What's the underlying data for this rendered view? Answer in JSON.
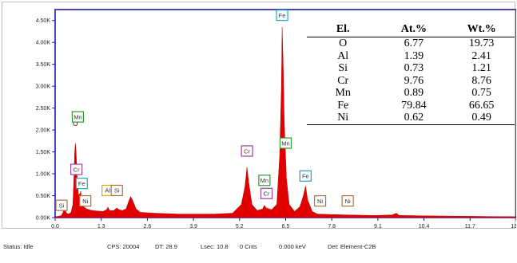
{
  "chart_data": {
    "type": "line",
    "title": "",
    "xlabel": "",
    "ylabel": "",
    "xlim": [
      0.0,
      13.0
    ],
    "ylim": [
      0,
      4.75
    ],
    "x_ticks": [
      "0.0",
      "1.3",
      "2.6",
      "3.9",
      "5.2",
      "6.5",
      "7.8",
      "9.1",
      "10.4",
      "11.7",
      "13.0"
    ],
    "y_ticks": [
      "0.00K",
      "0.50K",
      "1.00K",
      "1.50K",
      "2.00K",
      "2.50K",
      "3.00K",
      "3.50K",
      "4.00K",
      "4.50K"
    ],
    "y_tick_values": [
      0,
      0.5,
      1.0,
      1.5,
      2.0,
      2.5,
      3.0,
      3.5,
      4.0,
      4.5
    ],
    "fill_color": "#e00000",
    "spectrum": [
      [
        0.0,
        0.02
      ],
      [
        0.1,
        0.03
      ],
      [
        0.18,
        0.05
      ],
      [
        0.22,
        0.12
      ],
      [
        0.27,
        0.22
      ],
      [
        0.32,
        0.1
      ],
      [
        0.38,
        0.08
      ],
      [
        0.45,
        0.12
      ],
      [
        0.5,
        0.3
      ],
      [
        0.53,
        0.9
      ],
      [
        0.55,
        1.45
      ],
      [
        0.57,
        1.7
      ],
      [
        0.59,
        1.5
      ],
      [
        0.62,
        0.95
      ],
      [
        0.66,
        0.5
      ],
      [
        0.7,
        0.55
      ],
      [
        0.72,
        0.6
      ],
      [
        0.75,
        0.4
      ],
      [
        0.8,
        0.25
      ],
      [
        0.88,
        0.2
      ],
      [
        0.95,
        0.18
      ],
      [
        1.05,
        0.16
      ],
      [
        1.2,
        0.15
      ],
      [
        1.35,
        0.14
      ],
      [
        1.45,
        0.18
      ],
      [
        1.49,
        0.24
      ],
      [
        1.53,
        0.16
      ],
      [
        1.65,
        0.16
      ],
      [
        1.74,
        0.22
      ],
      [
        1.8,
        0.18
      ],
      [
        1.9,
        0.16
      ],
      [
        2.0,
        0.2
      ],
      [
        2.08,
        0.38
      ],
      [
        2.13,
        0.48
      ],
      [
        2.18,
        0.4
      ],
      [
        2.28,
        0.2
      ],
      [
        2.4,
        0.12
      ],
      [
        2.8,
        0.1
      ],
      [
        3.5,
        0.08
      ],
      [
        4.5,
        0.08
      ],
      [
        5.0,
        0.1
      ],
      [
        5.25,
        0.3
      ],
      [
        5.35,
        0.7
      ],
      [
        5.41,
        1.15
      ],
      [
        5.46,
        0.8
      ],
      [
        5.55,
        0.3
      ],
      [
        5.7,
        0.16
      ],
      [
        5.85,
        0.2
      ],
      [
        5.9,
        0.28
      ],
      [
        5.95,
        0.22
      ],
      [
        6.1,
        0.18
      ],
      [
        6.25,
        0.3
      ],
      [
        6.33,
        1.4
      ],
      [
        6.38,
        3.0
      ],
      [
        6.4,
        4.35
      ],
      [
        6.43,
        3.5
      ],
      [
        6.46,
        2.2
      ],
      [
        6.52,
        0.9
      ],
      [
        6.6,
        0.3
      ],
      [
        6.75,
        0.14
      ],
      [
        6.9,
        0.25
      ],
      [
        7.0,
        0.5
      ],
      [
        7.06,
        0.72
      ],
      [
        7.12,
        0.4
      ],
      [
        7.25,
        0.14
      ],
      [
        7.4,
        0.08
      ],
      [
        7.8,
        0.07
      ],
      [
        8.3,
        0.06
      ],
      [
        9.0,
        0.05
      ],
      [
        9.5,
        0.06
      ],
      [
        9.62,
        0.1
      ],
      [
        9.7,
        0.05
      ],
      [
        10.4,
        0.04
      ],
      [
        11.7,
        0.03
      ],
      [
        13.0,
        0.02
      ]
    ],
    "peak_labels": [
      {
        "text": "O",
        "x": 0.57,
        "y": 2.15,
        "color": "#000000"
      },
      {
        "text": "Mn",
        "x": 0.64,
        "y": 2.3,
        "color": "#2e9c2e"
      },
      {
        "text": "Cr",
        "x": 0.6,
        "y": 1.1,
        "color": "#a040a0"
      },
      {
        "text": "Fe",
        "x": 0.75,
        "y": 0.78,
        "color": "#19a6c7"
      },
      {
        "text": "Si",
        "x": 0.18,
        "y": 0.28,
        "color": "#b07040"
      },
      {
        "text": "Ni",
        "x": 0.85,
        "y": 0.38,
        "color": "#b07040"
      },
      {
        "text": "Al",
        "x": 1.48,
        "y": 0.62,
        "color": "#d4b000"
      },
      {
        "text": "Si",
        "x": 1.74,
        "y": 0.62,
        "color": "#b07040"
      },
      {
        "text": "Cr",
        "x": 5.41,
        "y": 1.52,
        "color": "#a040a0"
      },
      {
        "text": "Mn",
        "x": 5.9,
        "y": 0.85,
        "color": "#2e9c2e"
      },
      {
        "text": "Cr",
        "x": 5.96,
        "y": 0.55,
        "color": "#a040a0"
      },
      {
        "text": "Fe",
        "x": 6.4,
        "y": 4.62,
        "color": "#19a6c7"
      },
      {
        "text": "Mn",
        "x": 6.5,
        "y": 1.7,
        "color": "#2e9c2e"
      },
      {
        "text": "Fe",
        "x": 7.06,
        "y": 0.95,
        "color": "#19a6c7"
      },
      {
        "text": "Ni",
        "x": 7.47,
        "y": 0.38,
        "color": "#b07040"
      },
      {
        "text": "Ni",
        "x": 8.25,
        "y": 0.38,
        "color": "#b07040"
      }
    ],
    "composition_table": {
      "headers": [
        "El.",
        "At.%",
        "Wt.%"
      ],
      "rows": [
        [
          "O",
          "6.77",
          "19.73"
        ],
        [
          "Al",
          "1.39",
          "2.41"
        ],
        [
          "Si",
          "0.73",
          "1.21"
        ],
        [
          "Cr",
          "9.76",
          "8.76"
        ],
        [
          "Mn",
          "0.89",
          "0.75"
        ],
        [
          "Fe",
          "79.84",
          "66.65"
        ],
        [
          "Ni",
          "0.62",
          "0.49"
        ]
      ]
    }
  },
  "status_bar": {
    "status": "Status: Idle",
    "cps": "CPS: 20004",
    "dt": "DT: 28.9",
    "lsec": "Lsec: 10.8",
    "cnts": "0 Cnts",
    "kev": "0.000 keV",
    "det": "Det: Element-C2B"
  }
}
